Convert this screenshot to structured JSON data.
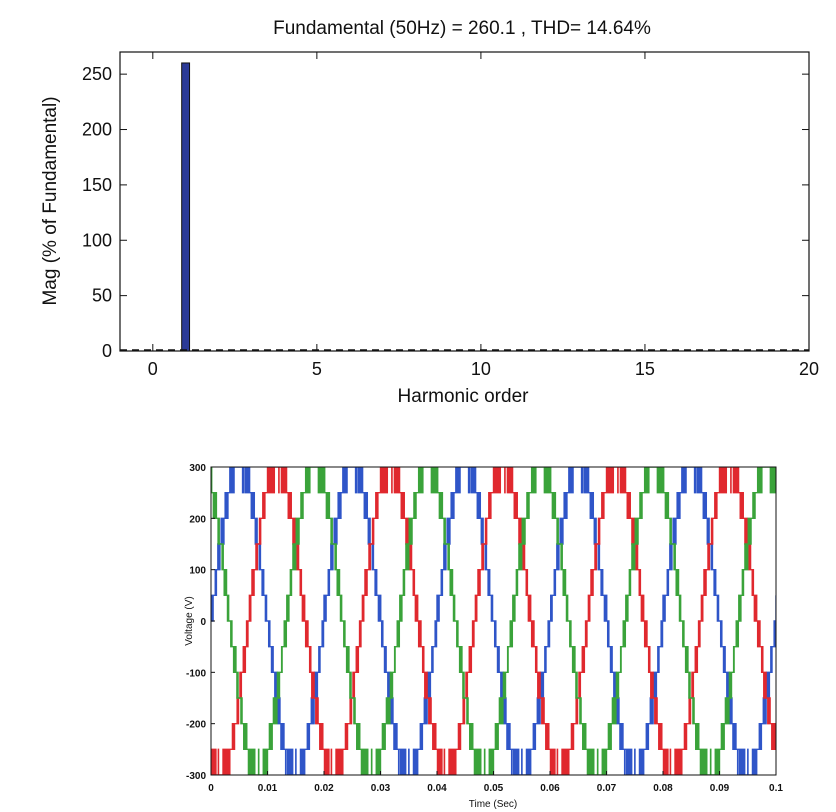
{
  "chart_data": [
    {
      "type": "bar",
      "title": "Fundamental (50Hz) = 260.1 , THD= 14.64%",
      "xlabel": "Harmonic order",
      "ylabel": "Mag (% of Fundamental)",
      "xlim": [
        -1,
        20
      ],
      "ylim": [
        0,
        270
      ],
      "xticks": [
        0,
        5,
        10,
        15,
        20
      ],
      "yticks": [
        0,
        50,
        100,
        150,
        200,
        250
      ],
      "x": [
        1
      ],
      "values": [
        260.1
      ],
      "bar_color": "#2b3a97",
      "baseline": "dashed"
    },
    {
      "type": "line",
      "title": "",
      "xlabel": "Time (Sec)",
      "ylabel": "Voltage (V)",
      "xlim": [
        0,
        0.1
      ],
      "ylim": [
        -300,
        300
      ],
      "xticks": [
        "0",
        "0.01",
        "0.02",
        "0.03",
        "0.04",
        "0.05",
        "0.06",
        "0.07",
        "0.08",
        "0.09",
        "0.1"
      ],
      "yticks": [
        "300",
        "200",
        "100",
        "0",
        "-100",
        "-200",
        "-300"
      ],
      "frequency_hz": 50,
      "amplitude": 260.1,
      "step_levels": [
        -300,
        -250,
        -200,
        -150,
        -100,
        -50,
        0,
        50,
        100,
        150,
        200,
        250,
        300
      ],
      "series": [
        {
          "phase_deg": 0,
          "color": "#2f55c8"
        },
        {
          "phase_deg": -120,
          "color": "#e0282e"
        },
        {
          "phase_deg": 120,
          "color": "#3aa33a"
        }
      ]
    }
  ]
}
